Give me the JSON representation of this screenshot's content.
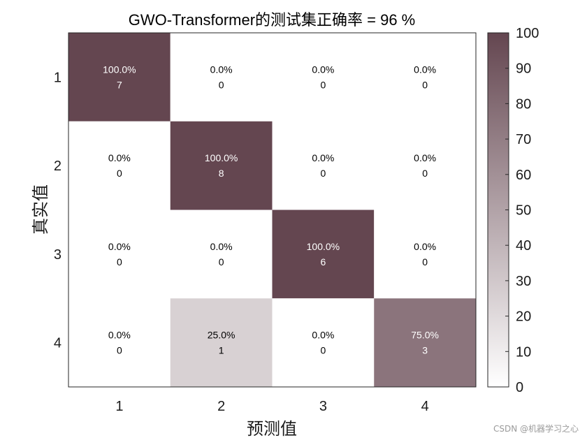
{
  "watermark": "CSDN @机器学习之心",
  "colors": {
    "max": "#644650",
    "min": "#ffffff"
  },
  "chart_data": {
    "type": "heatmap",
    "title": "GWO-Transformer的测试集正确率 = 96 %",
    "xlabel": "预测值",
    "ylabel": "真实值",
    "x_categories": [
      "1",
      "2",
      "3",
      "4"
    ],
    "y_categories": [
      "1",
      "2",
      "3",
      "4"
    ],
    "percent_labels": [
      [
        "100.0%",
        "0.0%",
        "0.0%",
        "0.0%"
      ],
      [
        "0.0%",
        "100.0%",
        "0.0%",
        "0.0%"
      ],
      [
        "0.0%",
        "0.0%",
        "100.0%",
        "0.0%"
      ],
      [
        "0.0%",
        "25.0%",
        "0.0%",
        "75.0%"
      ]
    ],
    "percent_values": [
      [
        100,
        0,
        0,
        0
      ],
      [
        0,
        100,
        0,
        0
      ],
      [
        0,
        0,
        100,
        0
      ],
      [
        0,
        25,
        0,
        75
      ]
    ],
    "counts": [
      [
        7,
        0,
        0,
        0
      ],
      [
        0,
        8,
        0,
        0
      ],
      [
        0,
        0,
        6,
        0
      ],
      [
        0,
        1,
        0,
        3
      ]
    ],
    "colorbar": {
      "range": [
        0,
        100
      ],
      "ticks": [
        "0",
        "10",
        "20",
        "30",
        "40",
        "50",
        "60",
        "70",
        "80",
        "90",
        "100"
      ]
    }
  }
}
